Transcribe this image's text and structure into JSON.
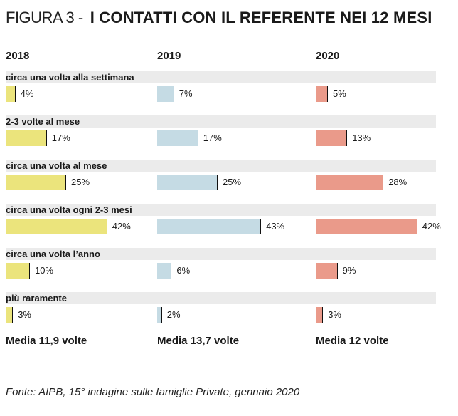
{
  "title": {
    "prefix": "FIGURA 3 -",
    "main": "I CONTATTI CON IL REFERENTE NEI 12 MESI"
  },
  "colors": {
    "2018": "#ebe47c",
    "2019": "#c5dbe4",
    "2020": "#ea9a8a",
    "band": "#ebebeb"
  },
  "chart_data": {
    "type": "bar",
    "title": "I CONTATTI CON IL REFERENTE NEI 12 MESI",
    "categories": [
      "circa una volta alla settimana",
      "2-3 volte al mese",
      "circa una volta al mese",
      "circa una volta ogni 2-3 mesi",
      "circa una volta l’anno",
      "più raramente"
    ],
    "series": [
      {
        "name": "2018",
        "values": [
          4,
          17,
          25,
          42,
          10,
          3
        ],
        "labels": [
          "4%",
          "17%",
          "25%",
          "42%",
          "10%",
          "3%"
        ],
        "media": "Media 11,9 volte"
      },
      {
        "name": "2019",
        "values": [
          7,
          17,
          25,
          43,
          6,
          2
        ],
        "labels": [
          "7%",
          "17%",
          "25%",
          "43%",
          "6%",
          "2%"
        ],
        "media": "Media 13,7 volte"
      },
      {
        "name": "2020",
        "values": [
          5,
          13,
          28,
          42,
          9,
          3
        ],
        "labels": [
          "5%",
          "13%",
          "28%",
          "42%",
          "9%",
          "3%"
        ],
        "media": "Media 12 volte"
      }
    ],
    "unit": "%",
    "orientation": "horizontal",
    "xlim": [
      0,
      45
    ],
    "grid": false,
    "legend": "none"
  },
  "source": "Fonte: AIPB, 15° indagine sulle famiglie Private, gennaio 2020"
}
